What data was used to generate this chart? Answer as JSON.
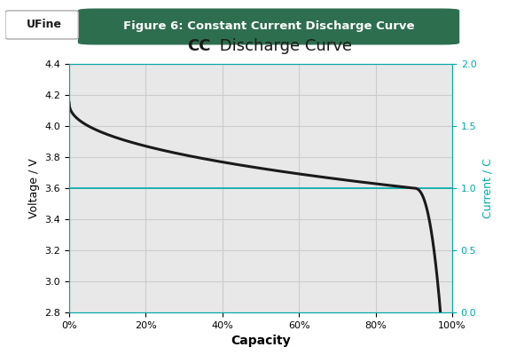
{
  "title_chart": "CC Discharge Curve",
  "title_bold_part": "CC",
  "figure_label": "Figure 6: Constant Current Discharge Curve",
  "xlabel": "Capacity",
  "ylabel_left": "Voltage / V",
  "ylabel_right": "Current / C",
  "xlim": [
    0,
    1.0
  ],
  "ylim_left": [
    2.8,
    4.4
  ],
  "ylim_right": [
    0.0,
    2.0
  ],
  "xtick_labels": [
    "0%",
    "20%",
    "40%",
    "60%",
    "80%",
    "100%"
  ],
  "xtick_positions": [
    0,
    0.2,
    0.4,
    0.6,
    0.8,
    1.0
  ],
  "ytick_left": [
    2.8,
    3.0,
    3.2,
    3.4,
    3.6,
    3.8,
    4.0,
    4.2,
    4.4
  ],
  "ytick_right": [
    0.0,
    0.5,
    1.0,
    1.5,
    2.0
  ],
  "hline_y": 3.6,
  "hline_color": "#00AAAA",
  "curve_color": "#1a1a1a",
  "right_axis_color": "#00AAAA",
  "grid_color": "#cccccc",
  "plot_bg_color": "#e8e8e8",
  "outer_bg_color": "#ffffff",
  "banner_color": "#2d6e4e",
  "banner_text_color": "#ffffff",
  "logo_text": "UFine",
  "figsize": [
    6.0,
    4.0
  ],
  "dpi": 100
}
